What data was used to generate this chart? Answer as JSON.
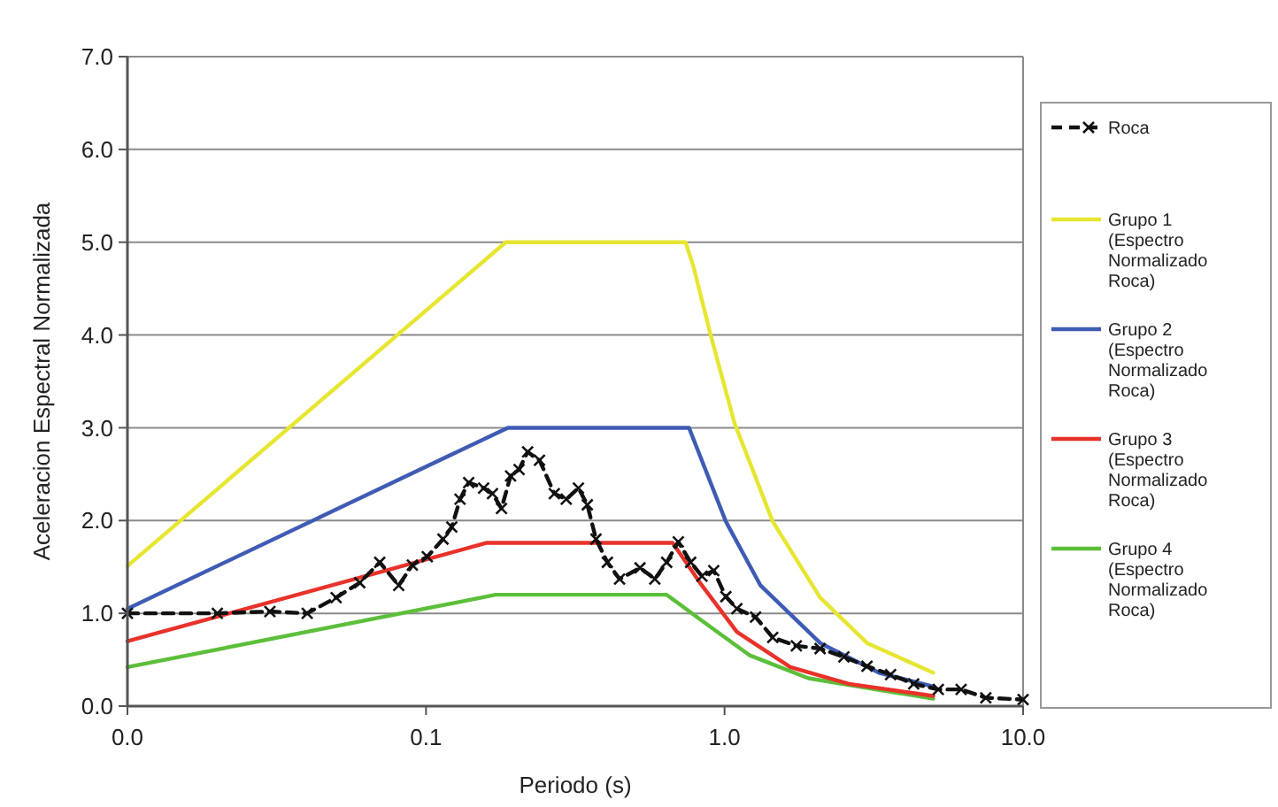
{
  "chart_data": {
    "type": "line",
    "xlabel": "Periodo (s)",
    "ylabel": "Aceleracion Espectral Normalizada",
    "log": "x",
    "xlim": [
      0.01,
      10
    ],
    "xticks": [
      {
        "value": 0.01,
        "label": "0.0"
      },
      {
        "value": 0.1,
        "label": "0.1"
      },
      {
        "value": 1,
        "label": "1.0"
      },
      {
        "value": 10,
        "label": "10.0"
      }
    ],
    "ylim": [
      0,
      7
    ],
    "yticks": [
      {
        "value": 0,
        "label": "0.0"
      },
      {
        "value": 1,
        "label": "1.0"
      },
      {
        "value": 2,
        "label": "2.0"
      },
      {
        "value": 3,
        "label": "3.0"
      },
      {
        "value": 4,
        "label": "4.0"
      },
      {
        "value": 5,
        "label": "5.0"
      },
      {
        "value": 6,
        "label": "6.0"
      },
      {
        "value": 7,
        "label": "7.0"
      }
    ],
    "grid": "y",
    "legend": "right",
    "line_style": "solid",
    "marker": "none",
    "series": [
      {
        "name": "Roca",
        "color": "#111111",
        "line_style": "dashed",
        "marker": "cross",
        "x": [
          0.01,
          0.02,
          0.03,
          0.04,
          0.05,
          0.06,
          0.07,
          0.081,
          0.09,
          0.101,
          0.114,
          0.122,
          0.13,
          0.139,
          0.156,
          0.167,
          0.179,
          0.192,
          0.205,
          0.219,
          0.24,
          0.269,
          0.295,
          0.324,
          0.347,
          0.371,
          0.405,
          0.445,
          0.521,
          0.584,
          0.64,
          0.7,
          0.77,
          0.84,
          0.92,
          1.01,
          1.1,
          1.27,
          1.45,
          1.74,
          2.09,
          2.51,
          3.0,
          3.6,
          4.3,
          5.2,
          6.2,
          7.5,
          10
        ],
        "values": [
          1.0,
          1.0,
          1.02,
          1.0,
          1.17,
          1.33,
          1.55,
          1.3,
          1.52,
          1.61,
          1.8,
          1.93,
          2.23,
          2.41,
          2.35,
          2.29,
          2.13,
          2.48,
          2.55,
          2.74,
          2.65,
          2.29,
          2.23,
          2.35,
          2.17,
          1.8,
          1.55,
          1.37,
          1.49,
          1.37,
          1.55,
          1.77,
          1.55,
          1.4,
          1.46,
          1.18,
          1.05,
          0.96,
          0.74,
          0.65,
          0.62,
          0.53,
          0.43,
          0.34,
          0.24,
          0.18,
          0.18,
          0.09,
          0.07
        ]
      },
      {
        "name": "Grupo 1 (Espectro Normalizado Roca)",
        "color": "#e6e632",
        "x": [
          0.01,
          0.185,
          0.74,
          0.785,
          0.9,
          1.08,
          1.45,
          2.09,
          3.0,
          5.0
        ],
        "values": [
          1.51,
          5.0,
          5.0,
          4.75,
          3.99,
          3.05,
          1.99,
          1.17,
          0.68,
          0.36
        ]
      },
      {
        "name": "Grupo 2 (Espectro Normalizado Roca)",
        "color": "#3f5bb4",
        "x": [
          0.01,
          0.188,
          0.76,
          1.01,
          1.32,
          2.09,
          3.29,
          5.0
        ],
        "values": [
          1.05,
          3.0,
          3.0,
          1.99,
          1.3,
          0.68,
          0.36,
          0.21
        ]
      },
      {
        "name": "Grupo 3 (Espectro Normalizado Roca)",
        "color": "#e8322a",
        "x": [
          0.01,
          0.16,
          0.67,
          0.84,
          1.1,
          1.66,
          2.61,
          5.0
        ],
        "values": [
          0.7,
          1.76,
          1.76,
          1.3,
          0.8,
          0.42,
          0.24,
          0.11
        ]
      },
      {
        "name": "Grupo 4 (Espectro Normalizado Roca)",
        "color": "#5cbf3a",
        "x": [
          0.01,
          0.171,
          0.64,
          0.84,
          1.21,
          1.91,
          5.0
        ],
        "values": [
          0.42,
          1.2,
          1.2,
          0.92,
          0.55,
          0.3,
          0.08
        ]
      }
    ]
  }
}
